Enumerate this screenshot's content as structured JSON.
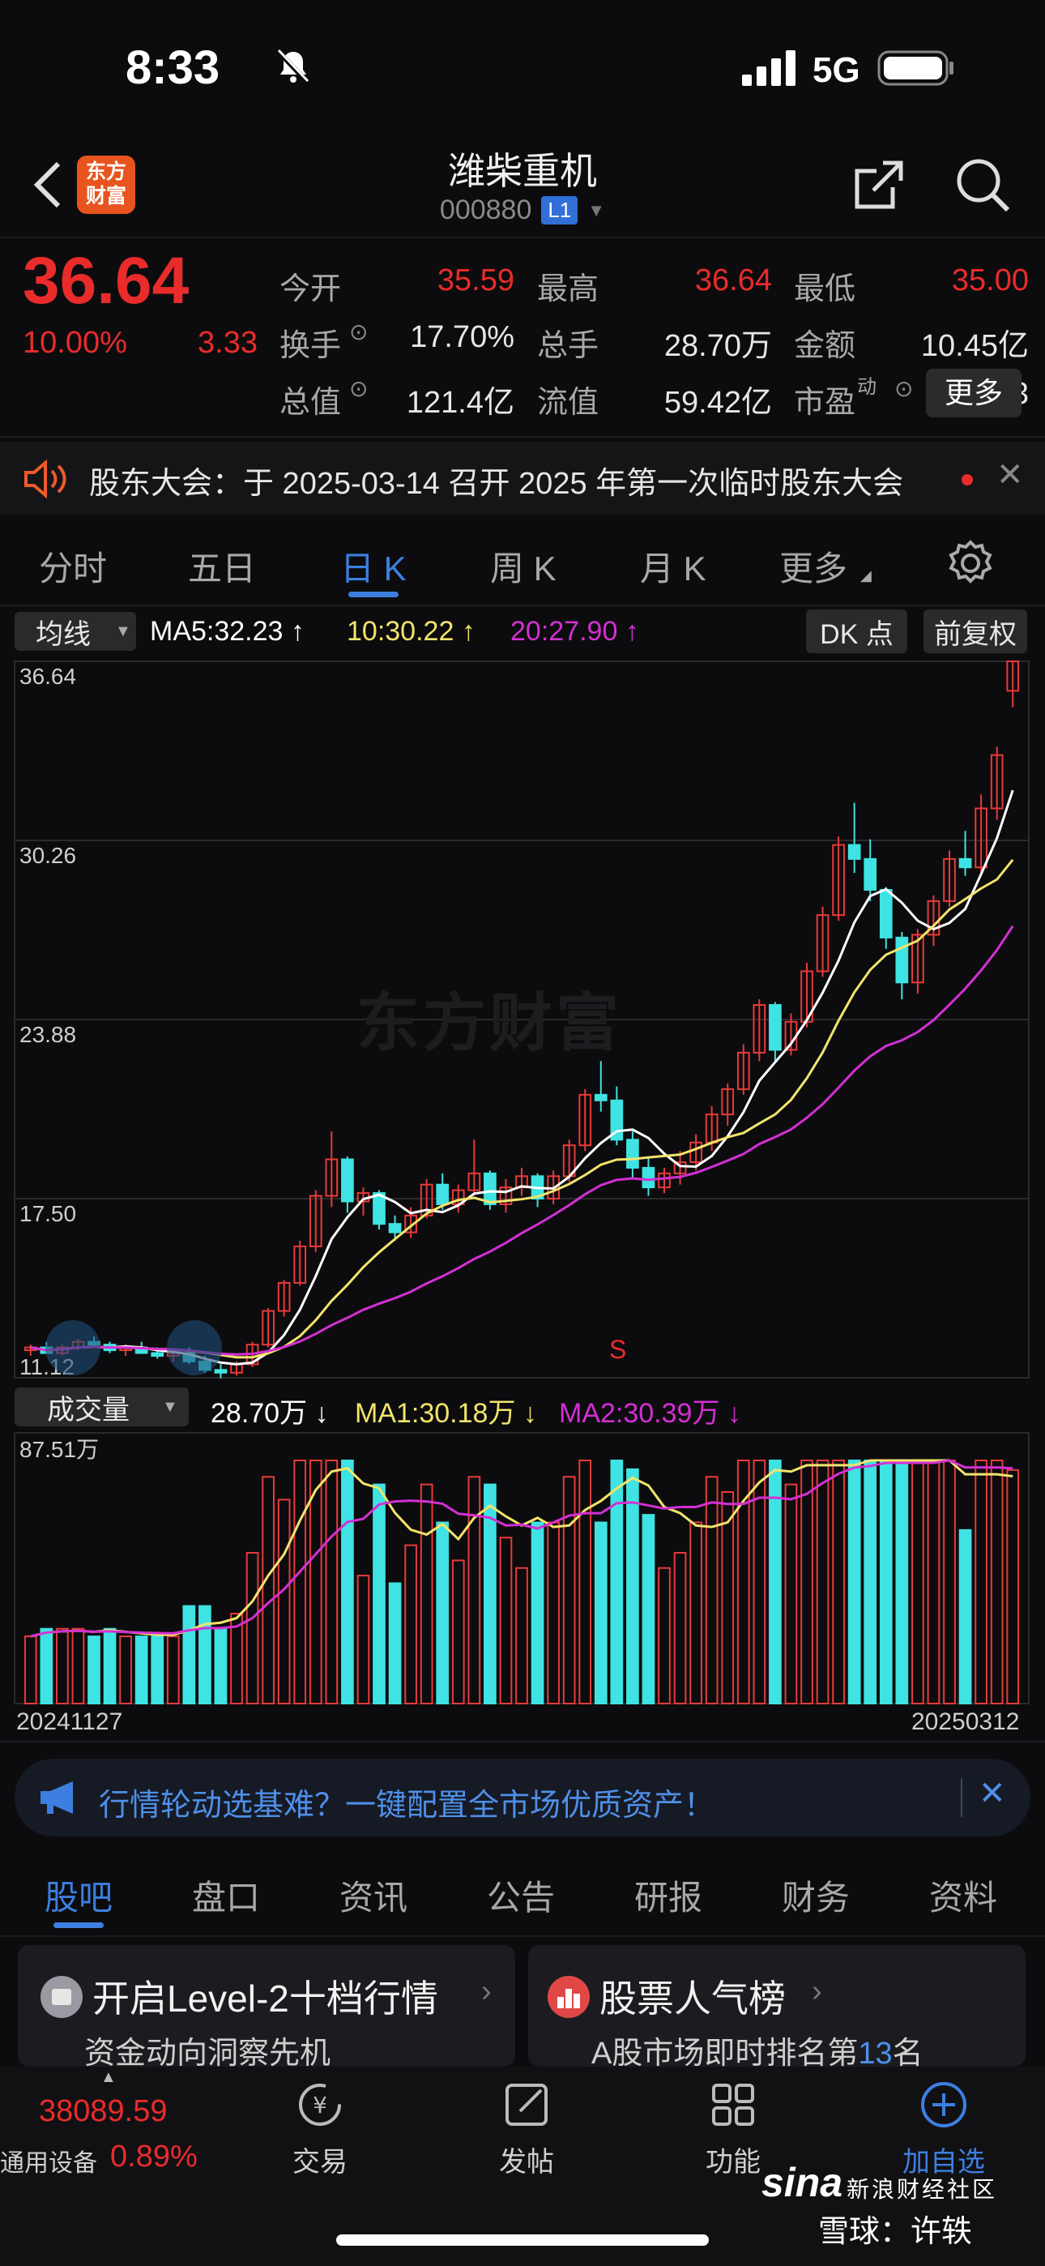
{
  "status_bar": {
    "time": "8:33",
    "network": "5G"
  },
  "header": {
    "logo_text": "东方\n财富",
    "title": "潍柴重机",
    "code": "000880",
    "level_badge": "L1"
  },
  "quote": {
    "price": "36.64",
    "change_pct": "10.00%",
    "change": "3.33",
    "rows": [
      [
        {
          "label": "今开",
          "value": "35.59",
          "color": "red"
        },
        {
          "label": "最高",
          "value": "36.64",
          "color": "red"
        },
        {
          "label": "最低",
          "value": "35.00",
          "color": "red"
        }
      ],
      [
        {
          "label": "换手",
          "value": "17.70%",
          "color": "white"
        },
        {
          "label": "总手",
          "value": "28.70万",
          "color": "white"
        },
        {
          "label": "金额",
          "value": "10.45亿",
          "color": "white"
        }
      ],
      [
        {
          "label": "总值",
          "value": "121.4亿",
          "color": "white"
        },
        {
          "label": "流值",
          "value": "59.42亿",
          "color": "white"
        },
        {
          "label": "市盈",
          "value": "63.03",
          "color": "white"
        }
      ]
    ],
    "pe_sup": "动",
    "more_label": "更多"
  },
  "notice": {
    "text": "股东大会：于 2025-03-14 召开 2025 年第一次临时股东大会"
  },
  "chart_tabs": [
    "分时",
    "五日",
    "日 K",
    "周 K",
    "月 K",
    "更多"
  ],
  "chart_tab_active": 2,
  "ma_bar": {
    "dropdown": "均线",
    "ma5": "MA5:32.23",
    "ma10": "10:30.22",
    "ma20": "20:27.90",
    "dk_label": "DK 点",
    "adjust_label": "前复权"
  },
  "colors": {
    "ma5": "#ffffff",
    "ma10": "#f2e46a",
    "ma20": "#d42fd4",
    "up": "#e83a3a",
    "down": "#3fe3e3"
  },
  "price_axis": [
    "36.64",
    "30.26",
    "23.88",
    "17.50",
    "11.12"
  ],
  "sell_marker": "S",
  "volume_bar": {
    "dropdown": "成交量",
    "vol": "28.70万",
    "ma1": "MA1:30.18万",
    "ma2": "MA2:30.39万",
    "max_label": "87.51万"
  },
  "date_start": "20241127",
  "date_end": "20250312",
  "chart_data": {
    "type": "candlestick",
    "ylim": [
      11.12,
      36.64
    ],
    "candles": [
      [
        12.1,
        12.3,
        11.9,
        12.2
      ],
      [
        12.2,
        12.4,
        12.0,
        12.0
      ],
      [
        12.0,
        12.3,
        11.9,
        12.2
      ],
      [
        12.2,
        12.5,
        12.1,
        12.4
      ],
      [
        12.4,
        12.6,
        12.2,
        12.3
      ],
      [
        12.3,
        12.4,
        12.0,
        12.1
      ],
      [
        12.1,
        12.3,
        11.9,
        12.2
      ],
      [
        12.2,
        12.4,
        12.1,
        12.0
      ],
      [
        12.0,
        12.2,
        11.8,
        11.9
      ],
      [
        11.9,
        12.1,
        11.7,
        12.0
      ],
      [
        12.0,
        12.2,
        11.6,
        11.7
      ],
      [
        11.7,
        11.9,
        11.3,
        11.4
      ],
      [
        11.4,
        11.6,
        11.1,
        11.3
      ],
      [
        11.3,
        11.7,
        11.2,
        11.6
      ],
      [
        11.6,
        12.4,
        11.5,
        12.3
      ],
      [
        12.3,
        13.6,
        12.2,
        13.5
      ],
      [
        13.5,
        14.6,
        13.3,
        14.5
      ],
      [
        14.5,
        16.0,
        14.4,
        15.8
      ],
      [
        15.8,
        17.8,
        15.6,
        17.6
      ],
      [
        17.6,
        19.9,
        17.2,
        18.9
      ],
      [
        18.9,
        19.0,
        17.0,
        17.4
      ],
      [
        17.4,
        17.9,
        16.9,
        17.7
      ],
      [
        17.7,
        17.8,
        16.4,
        16.6
      ],
      [
        16.6,
        16.9,
        16.0,
        16.3
      ],
      [
        16.3,
        17.2,
        16.1,
        16.9
      ],
      [
        16.9,
        18.2,
        16.8,
        18.0
      ],
      [
        18.0,
        18.4,
        17.1,
        17.3
      ],
      [
        17.3,
        18.0,
        17.0,
        17.8
      ],
      [
        17.8,
        19.6,
        17.6,
        18.4
      ],
      [
        18.4,
        18.5,
        17.1,
        17.3
      ],
      [
        17.3,
        18.2,
        17.0,
        17.9
      ],
      [
        17.9,
        18.6,
        17.6,
        18.3
      ],
      [
        18.3,
        18.4,
        17.2,
        17.5
      ],
      [
        17.5,
        18.5,
        17.3,
        18.3
      ],
      [
        18.3,
        19.6,
        18.1,
        19.4
      ],
      [
        19.4,
        21.4,
        19.2,
        21.2
      ],
      [
        21.2,
        22.4,
        20.6,
        21.0
      ],
      [
        21.0,
        21.5,
        19.4,
        19.6
      ],
      [
        19.6,
        19.9,
        18.2,
        18.6
      ],
      [
        18.6,
        19.0,
        17.6,
        17.9
      ],
      [
        17.9,
        18.6,
        17.7,
        18.4
      ],
      [
        18.4,
        19.2,
        18.0,
        18.8
      ],
      [
        18.8,
        19.8,
        18.5,
        19.5
      ],
      [
        19.5,
        20.8,
        19.2,
        20.5
      ],
      [
        20.5,
        21.6,
        20.1,
        21.4
      ],
      [
        21.4,
        23.0,
        21.2,
        22.7
      ],
      [
        22.7,
        24.6,
        22.4,
        24.4
      ],
      [
        24.4,
        24.5,
        22.4,
        22.8
      ],
      [
        22.8,
        24.1,
        22.6,
        23.8
      ],
      [
        23.8,
        25.9,
        23.6,
        25.6
      ],
      [
        25.6,
        27.9,
        25.4,
        27.6
      ],
      [
        27.6,
        30.4,
        27.4,
        30.1
      ],
      [
        30.1,
        31.6,
        29.1,
        29.6
      ],
      [
        29.6,
        30.3,
        28.1,
        28.5
      ],
      [
        28.5,
        28.6,
        26.4,
        26.8
      ],
      [
        26.8,
        27.0,
        24.6,
        25.2
      ],
      [
        25.2,
        27.1,
        24.8,
        26.9
      ],
      [
        26.9,
        28.3,
        26.5,
        28.1
      ],
      [
        28.1,
        29.9,
        27.9,
        29.6
      ],
      [
        29.6,
        30.6,
        29.0,
        29.3
      ],
      [
        29.3,
        31.9,
        29.1,
        31.4
      ],
      [
        31.4,
        33.6,
        31.0,
        33.3
      ],
      [
        35.59,
        36.64,
        35.0,
        36.64
      ]
    ],
    "volume_max": "87.51万"
  },
  "promo": {
    "text": "行情轮动选基难？一键配置全市场优质资产！"
  },
  "bottom_tabs": [
    "股吧",
    "盘口",
    "资讯",
    "公告",
    "研报",
    "财务",
    "资料"
  ],
  "bottom_tab_active": 0,
  "cards": [
    {
      "title": "开启Level-2十档行情",
      "subtitle": "资金动向洞察先机"
    },
    {
      "title": "股票人气榜",
      "subtitle_pre": "A股市场即时排名第",
      "rank": "13",
      "subtitle_post": "名"
    }
  ],
  "footer": {
    "index_value": "38089.59",
    "index_name": "通用设备",
    "index_change": "0.89%",
    "actions": [
      "交易",
      "发帖",
      "功能",
      "加自选"
    ]
  },
  "watermark": {
    "sina": "sina",
    "sina_cn": "新浪财经社区",
    "xq": "雪球：许轶"
  }
}
